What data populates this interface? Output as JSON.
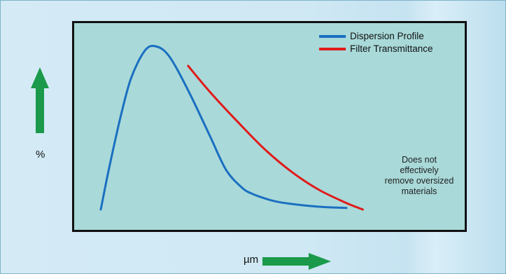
{
  "chart_data": {
    "type": "line",
    "title": "",
    "xlabel": "µm",
    "ylabel": "%",
    "grid": false,
    "legend_position": "top-right",
    "xlim": [
      0,
      100
    ],
    "ylim": [
      0,
      100
    ],
    "series": [
      {
        "name": "Dispersion Profile",
        "color": "#1a6fc0",
        "x": [
          0,
          3,
          7,
          11,
          16,
          20,
          25,
          32,
          40,
          46,
          52,
          55,
          58,
          64,
          72,
          82,
          90
        ],
        "y": [
          0,
          25,
          55,
          80,
          97,
          100,
          94,
          73,
          45,
          24,
          13,
          10,
          8,
          5,
          3,
          1.5,
          1
        ]
      },
      {
        "name": "Filter Transmittance",
        "color": "#e01b1b",
        "x": [
          32,
          40,
          50,
          60,
          70,
          80,
          90,
          96
        ],
        "y": [
          88,
          72,
          54,
          37,
          23,
          12,
          4,
          0
        ]
      }
    ],
    "annotation": "Does not\neffectively\nremove oversized\nmaterials"
  },
  "colors": {
    "plot_background": "#a9d9d9",
    "arrow": "#1a9a4a"
  },
  "icons": {
    "y_arrow": "up-arrow-icon",
    "x_arrow": "right-arrow-icon"
  }
}
